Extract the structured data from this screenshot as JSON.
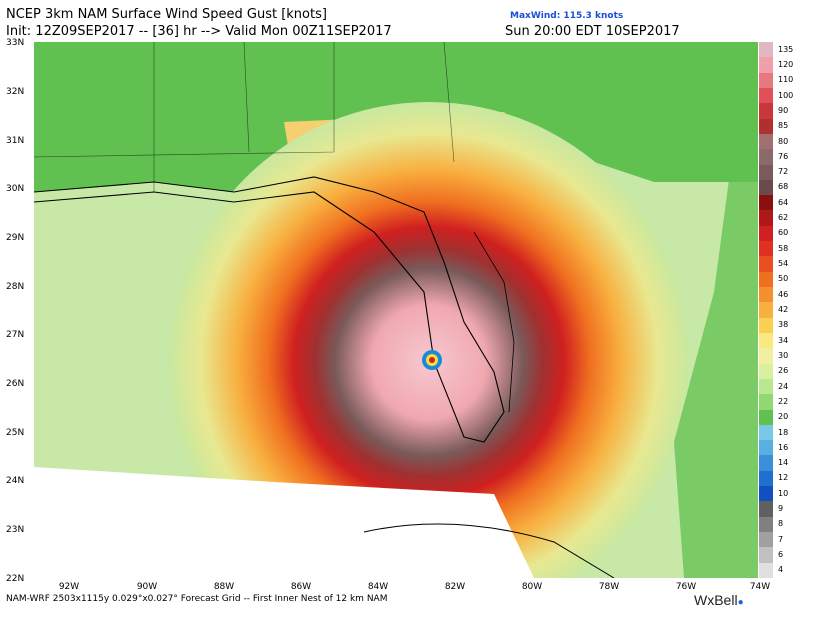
{
  "header": {
    "title": "NCEP 3km NAM Surface Wind Speed Gust [knots]",
    "init": "Init: 12Z09SEP2017 -- [36] hr --> Valid Mon 00Z11SEP2017",
    "valid_local": "Sun 20:00 EDT 10SEP2017",
    "max_wind": "MaxWind: 115.3 knots"
  },
  "axes": {
    "lat_labels": [
      "33N",
      "32N",
      "31N",
      "30N",
      "29N",
      "28N",
      "27N",
      "26N",
      "25N",
      "24N",
      "23N",
      "22N"
    ],
    "lon_labels": [
      "92W",
      "90W",
      "88W",
      "86W",
      "84W",
      "82W",
      "80W",
      "78W",
      "76W",
      "74W"
    ]
  },
  "colorbar": {
    "labels": [
      "135",
      "120",
      "110",
      "100",
      "90",
      "85",
      "80",
      "76",
      "72",
      "68",
      "64",
      "62",
      "60",
      "58",
      "54",
      "50",
      "46",
      "42",
      "38",
      "34",
      "30",
      "26",
      "24",
      "22",
      "20",
      "18",
      "16",
      "14",
      "12",
      "10",
      "9",
      "8",
      "7",
      "6",
      "4"
    ],
    "colors": [
      "#e0b8c0",
      "#f0a0a8",
      "#e87880",
      "#e05058",
      "#c83838",
      "#b03030",
      "#a07070",
      "#8a6a6a",
      "#7a5a5a",
      "#6a4a4a",
      "#8a1010",
      "#b01818",
      "#d02020",
      "#e03020",
      "#e85020",
      "#f07020",
      "#f59030",
      "#f8b040",
      "#fad050",
      "#fae880",
      "#f0f0a0",
      "#d8f0a0",
      "#b8e890",
      "#90d870",
      "#60c050",
      "#78c8e8",
      "#58b0e0",
      "#3890d8",
      "#2070d0",
      "#1050c0",
      "#606060",
      "#808080",
      "#a0a0a0",
      "#c0c0c0",
      "#e0e0e0"
    ]
  },
  "footer": {
    "text": "NAM-WRF 2503x1115y 0.029°x0.027° Forecast Grid -- First Inner Nest of 12 km NAM",
    "brand": "WxBell"
  }
}
